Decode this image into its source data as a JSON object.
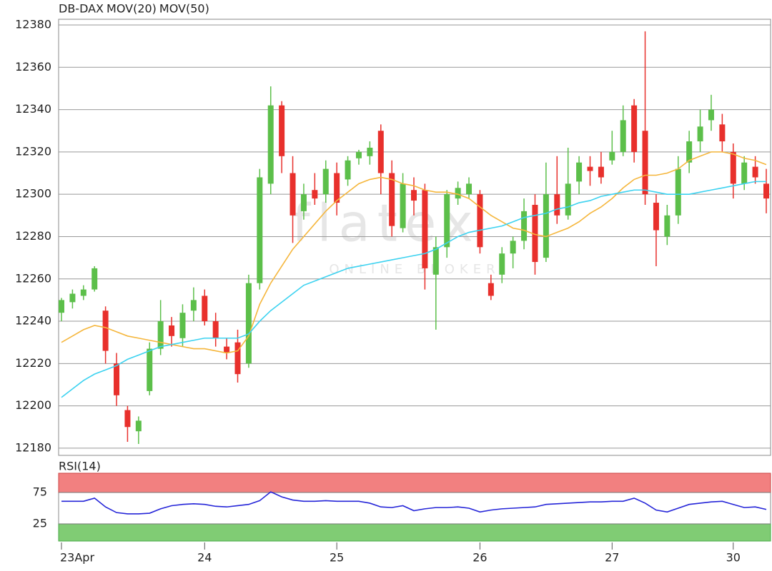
{
  "chart_data": {
    "type": "candlestick",
    "categories": [
      "23Apr",
      null,
      null,
      null,
      null,
      null,
      null,
      null,
      null,
      null,
      null,
      null,
      null,
      "24",
      null,
      null,
      null,
      null,
      null,
      null,
      null,
      null,
      null,
      null,
      null,
      "25",
      null,
      null,
      null,
      null,
      null,
      null,
      null,
      null,
      null,
      null,
      null,
      null,
      "26",
      null,
      null,
      null,
      null,
      null,
      null,
      null,
      null,
      null,
      null,
      null,
      "27",
      null,
      null,
      null,
      null,
      null,
      null,
      null,
      null,
      null,
      null,
      "30",
      null,
      null,
      null
    ],
    "series": [
      {
        "name": "DB-DAX",
        "color": "#e8302c",
        "up_color": "#5cbf4a",
        "open": [
          12244,
          12249,
          12252,
          12255,
          12245,
          12220,
          12198,
          12188,
          12207,
          12227,
          12238,
          12232,
          12245,
          12252,
          12240,
          12228,
          12230,
          12220,
          12258,
          12305,
          12342,
          12310,
          12292,
          12302,
          12300,
          12310,
          12307,
          12317,
          12318,
          12330,
          12310,
          12284,
          12302,
          12302,
          12262,
          12275,
          12298,
          12300,
          12300,
          12258,
          12262,
          12272,
          12278,
          12295,
          12270,
          12300,
          12290,
          12306,
          12313,
          12313,
          12316,
          12320,
          12342,
          12330,
          12296,
          12280,
          12290,
          12315,
          12325,
          12335,
          12333,
          12320,
          12305,
          12313,
          12305
        ],
        "high": [
          12251,
          12255,
          12257,
          12266,
          12247,
          12225,
          12200,
          12195,
          12230,
          12250,
          12242,
          12248,
          12256,
          12255,
          12244,
          12232,
          12236,
          12262,
          12312,
          12351,
          12344,
          12318,
          12305,
          12310,
          12316,
          12315,
          12318,
          12321,
          12325,
          12333,
          12316,
          12310,
          12308,
          12305,
          12280,
          12302,
          12306,
          12308,
          12302,
          12262,
          12275,
          12280,
          12298,
          12300,
          12315,
          12318,
          12322,
          12318,
          12318,
          12320,
          12330,
          12342,
          12345,
          12377,
          12300,
          12295,
          12318,
          12330,
          12340,
          12347,
          12338,
          12324,
          12318,
          12318,
          12312
        ],
        "low": [
          12240,
          12246,
          12250,
          12254,
          12220,
          12200,
          12183,
          12182,
          12205,
          12224,
          12228,
          12228,
          12240,
          12238,
          12228,
          12222,
          12211,
          12218,
          12255,
          12300,
          12310,
          12277,
          12288,
          12295,
          12296,
          12290,
          12304,
          12314,
          12314,
          12300,
          12280,
          12282,
          12290,
          12255,
          12236,
          12270,
          12295,
          12298,
          12272,
          12250,
          12258,
          12265,
          12274,
          12262,
          12268,
          12286,
          12288,
          12300,
          12304,
          12305,
          12314,
          12318,
          12315,
          12295,
          12266,
          12276,
          12286,
          12310,
          12320,
          12330,
          12320,
          12298,
          12302,
          12305,
          12291
        ],
        "close": [
          12250,
          12253,
          12255,
          12265,
          12226,
          12205,
          12190,
          12193,
          12227,
          12240,
          12233,
          12244,
          12250,
          12240,
          12232,
          12225,
          12215,
          12258,
          12308,
          12342,
          12318,
          12290,
          12300,
          12298,
          12312,
          12296,
          12316,
          12320,
          12322,
          12310,
          12285,
          12305,
          12297,
          12265,
          12275,
          12300,
          12303,
          12305,
          12275,
          12252,
          12272,
          12278,
          12292,
          12268,
          12300,
          12290,
          12305,
          12315,
          12311,
          12308,
          12320,
          12335,
          12320,
          12300,
          12283,
          12290,
          12312,
          12325,
          12332,
          12340,
          12325,
          12305,
          12315,
          12308,
          12298
        ]
      },
      {
        "name": "MOV(20)",
        "color": "#f5b63c",
        "values": [
          12230,
          12233,
          12236,
          12238,
          12237,
          12235,
          12233,
          12232,
          12231,
          12230,
          12229,
          12228,
          12227,
          12227,
          12226,
          12225,
          12226,
          12233,
          12248,
          12258,
          12266,
          12274,
          12280,
          12286,
          12292,
          12297,
          12301,
          12305,
          12307,
          12308,
          12307,
          12305,
          12304,
          12302,
          12301,
          12301,
          12300,
          12298,
          12294,
          12290,
          12287,
          12284,
          12283,
          12281,
          12280,
          12282,
          12284,
          12287,
          12291,
          12294,
          12298,
          12303,
          12307,
          12309,
          12309,
          12310,
          12312,
          12316,
          12318,
          12320,
          12320,
          12319,
          12317,
          12316,
          12314
        ]
      },
      {
        "name": "MOV(50)",
        "color": "#3cd2f0",
        "values": [
          12204,
          12208,
          12212,
          12215,
          12217,
          12219,
          12222,
          12224,
          12226,
          12228,
          12229,
          12230,
          12231,
          12232,
          12232,
          12232,
          12232,
          12234,
          12240,
          12245,
          12249,
          12253,
          12257,
          12259,
          12261,
          12263,
          12265,
          12266,
          12267,
          12268,
          12269,
          12270,
          12271,
          12272,
          12274,
          12277,
          12280,
          12282,
          12283,
          12284,
          12285,
          12287,
          12289,
          12290,
          12291,
          12293,
          12294,
          12296,
          12297,
          12299,
          12300,
          12301,
          12302,
          12302,
          12301,
          12300,
          12300,
          12300,
          12301,
          12302,
          12303,
          12304,
          12305,
          12306,
          12306
        ]
      }
    ],
    "ylim": [
      12176.6,
      12382.7
    ],
    "yticks": [
      12180,
      12200,
      12220,
      12240,
      12260,
      12280,
      12300,
      12320,
      12340,
      12360,
      12380
    ],
    "grid": true,
    "watermark": {
      "title": "flatex",
      "subtitle": "ONLINE BROKER"
    },
    "rsi": {
      "title": "RSI(14)",
      "color": "#2424d8",
      "overbought_color": "#f28080",
      "oversold_color": "#80cc74",
      "ylim": [
        -2.3,
        105.7
      ],
      "yticks": [
        25,
        75
      ],
      "values": [
        61,
        61,
        61,
        66,
        52,
        43,
        41,
        41,
        42,
        49,
        54,
        56,
        57,
        56,
        53,
        52,
        54,
        56,
        62,
        76,
        68,
        63,
        61,
        61,
        62,
        61,
        61,
        61,
        58,
        52,
        51,
        54,
        46,
        49,
        51,
        51,
        52,
        50,
        44,
        47,
        49,
        50,
        51,
        52,
        56,
        57,
        58,
        59,
        60,
        60,
        61,
        61,
        66,
        58,
        47,
        44,
        50,
        56,
        58,
        60,
        61,
        56,
        51,
        52,
        48
      ]
    }
  }
}
